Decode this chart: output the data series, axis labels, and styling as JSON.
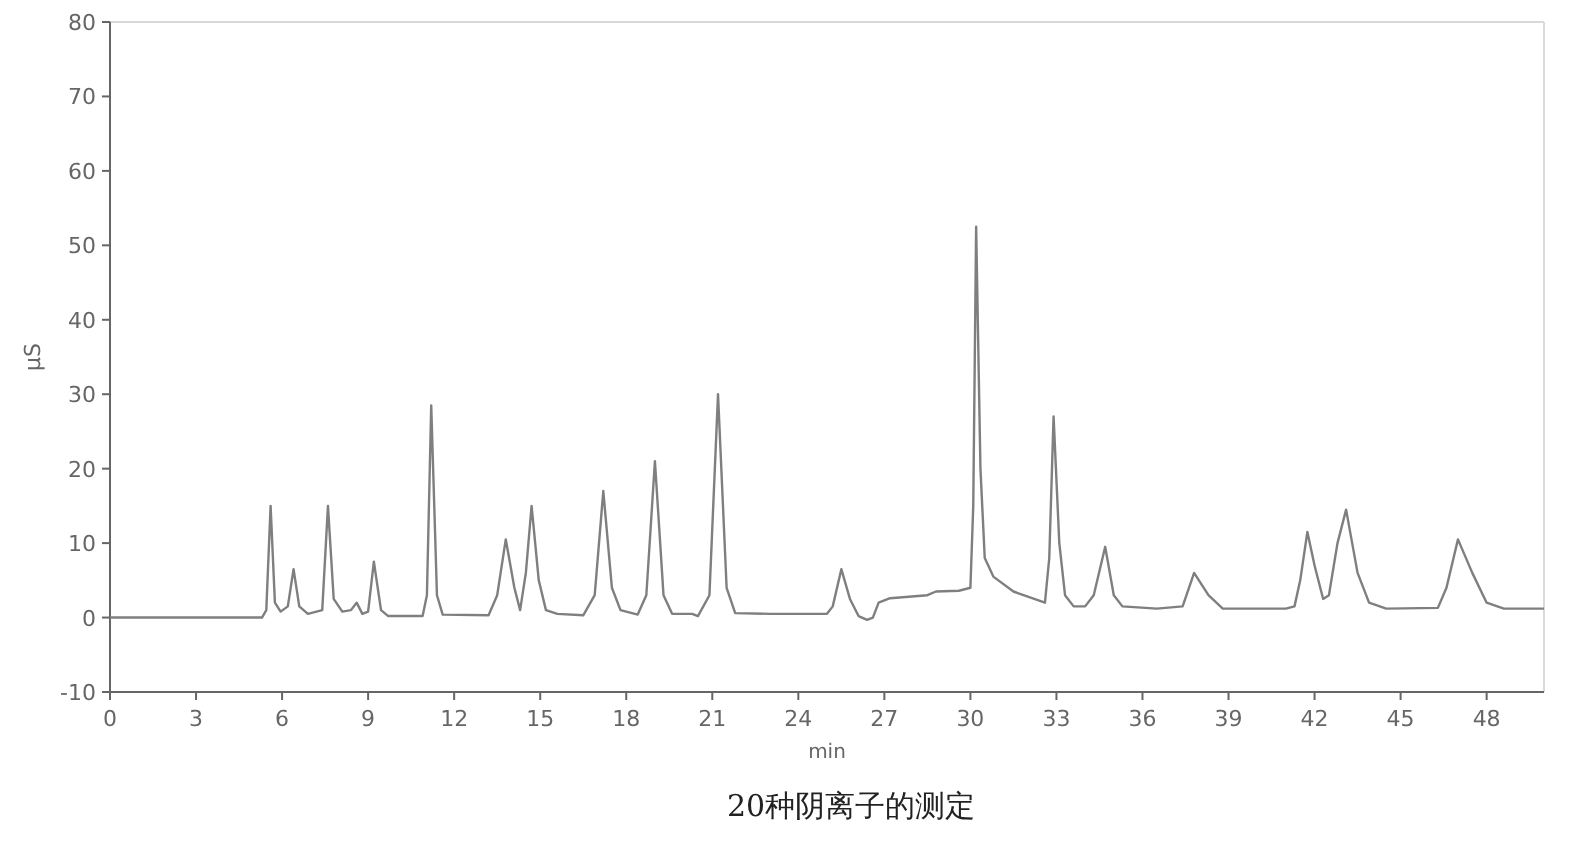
{
  "chart_data": {
    "type": "line",
    "xlabel": "min",
    "ylabel": "μS",
    "annotations": [
      "20种阴离子的测定"
    ],
    "xlim": [
      0,
      50
    ],
    "ylim": [
      -10,
      80
    ],
    "xticks": [
      0,
      3,
      6,
      9,
      12,
      15,
      18,
      21,
      24,
      27,
      30,
      33,
      36,
      39,
      42,
      45,
      48
    ],
    "yticks": [
      -10,
      0,
      10,
      20,
      30,
      40,
      50,
      60,
      70,
      80
    ],
    "grid": false,
    "marker": "none",
    "line_style": "solid",
    "series": [
      {
        "color": "#7f7f7f",
        "x": [
          0,
          5.3,
          5.45,
          5.6,
          5.75,
          5.95,
          6.2,
          6.4,
          6.6,
          6.9,
          7.4,
          7.6,
          7.8,
          8.1,
          8.4,
          8.6,
          8.8,
          9.0,
          9.2,
          9.45,
          9.7,
          10.9,
          11.05,
          11.2,
          11.4,
          11.6,
          13.2,
          13.5,
          13.8,
          14.1,
          14.3,
          14.5,
          14.7,
          14.95,
          15.2,
          15.6,
          16.5,
          16.9,
          17.2,
          17.5,
          17.8,
          18.4,
          18.7,
          19.0,
          19.3,
          19.6,
          20.3,
          20.5,
          20.9,
          21.2,
          21.5,
          21.8,
          23,
          25,
          25.2,
          25.5,
          25.8,
          26.1,
          26.4,
          26.6,
          26.8,
          27.2,
          28.5,
          28.8,
          29.6,
          30.0,
          30.1,
          30.2,
          30.35,
          30.5,
          30.8,
          31.5,
          32.6,
          32.75,
          32.9,
          33.1,
          33.3,
          33.6,
          34.0,
          34.3,
          34.7,
          35.0,
          35.3,
          36.5,
          37.4,
          37.8,
          38.3,
          38.8,
          41.0,
          41.3,
          41.5,
          41.75,
          42.0,
          42.3,
          42.5,
          42.8,
          43.1,
          43.5,
          43.9,
          44.5,
          46.3,
          46.6,
          47.0,
          47.5,
          48.0,
          48.6,
          50
        ],
        "values": [
          0,
          0,
          1,
          15,
          2,
          0.8,
          1.5,
          6.5,
          1.5,
          0.5,
          1,
          15,
          2.5,
          0.8,
          1,
          2,
          0.5,
          0.8,
          7.5,
          1,
          0.2,
          0.2,
          3,
          28.5,
          3,
          0.4,
          0.3,
          3,
          10.5,
          4,
          1,
          6,
          15,
          5,
          1,
          0.5,
          0.3,
          3,
          17,
          4,
          1,
          0.4,
          3,
          21,
          3,
          0.5,
          0.5,
          0.2,
          3,
          30,
          4,
          0.6,
          0.5,
          0.5,
          1.5,
          6.5,
          2.5,
          0.2,
          -0.3,
          0,
          2,
          2.6,
          3,
          3.5,
          3.6,
          4,
          15,
          52.5,
          20,
          8,
          5.5,
          3.5,
          2,
          8,
          27,
          10,
          3,
          1.5,
          1.5,
          3,
          9.5,
          3,
          1.5,
          1.2,
          1.5,
          6,
          3,
          1.2,
          1.2,
          1.5,
          5,
          11.5,
          7,
          2.5,
          3,
          10,
          14.5,
          6,
          2,
          1.2,
          1.3,
          4,
          10.5,
          6,
          2,
          1.2,
          1.2
        ]
      }
    ]
  }
}
